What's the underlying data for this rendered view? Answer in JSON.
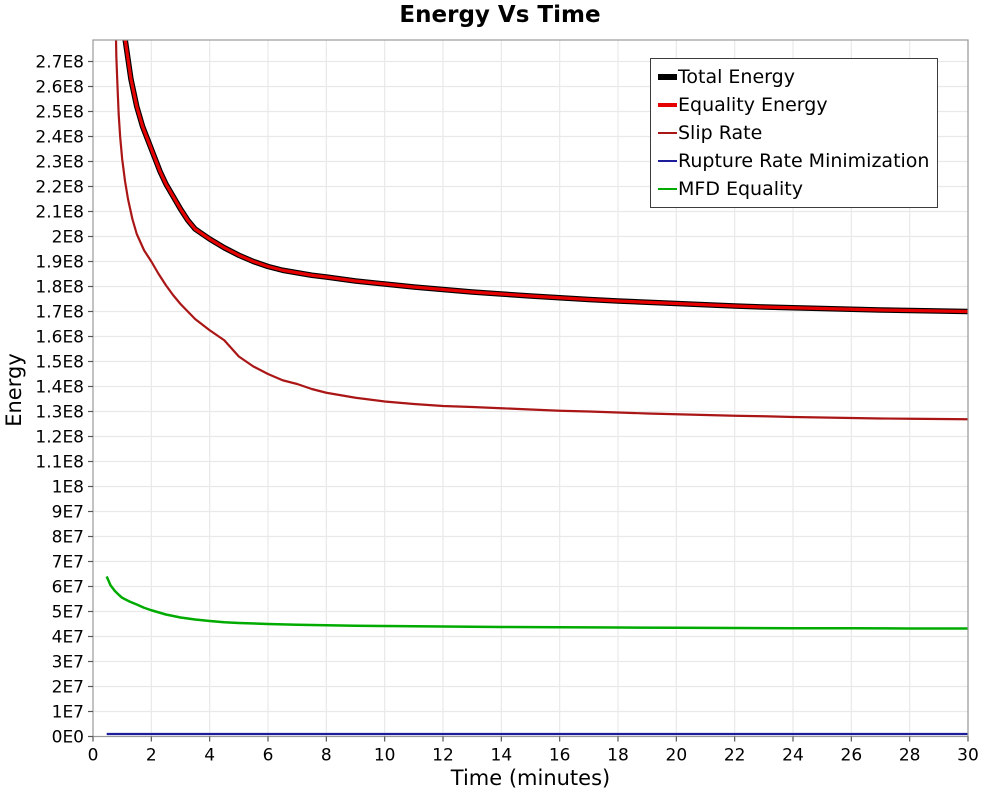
{
  "chart_data": {
    "type": "line",
    "title": "Energy Vs Time",
    "xlabel": "Time (minutes)",
    "ylabel": "Energy",
    "xlim": [
      0,
      30
    ],
    "ylim": [
      0,
      278600000
    ],
    "grid": true,
    "legend_position": "top-right",
    "x_ticks": [
      0,
      2,
      4,
      6,
      8,
      10,
      12,
      14,
      16,
      18,
      20,
      22,
      24,
      26,
      28,
      30
    ],
    "y_tick_step": 10000000,
    "y_tick_labels": [
      "0E0",
      "1E7",
      "2E7",
      "3E7",
      "4E7",
      "5E7",
      "6E7",
      "7E7",
      "8E7",
      "9E7",
      "1E8",
      "1.1E8",
      "1.2E8",
      "1.3E8",
      "1.4E8",
      "1.5E8",
      "1.6E8",
      "1.7E8",
      "1.8E8",
      "1.9E8",
      "2E8",
      "2.1E8",
      "2.2E8",
      "2.3E8",
      "2.4E8",
      "2.5E8",
      "2.6E8",
      "2.7E8"
    ],
    "series": [
      {
        "name": "Total Energy",
        "color": "#000000",
        "line_width": 5.5,
        "points": [
          [
            1.0,
            292000000.0
          ],
          [
            1.1,
            279000000.0
          ],
          [
            1.2,
            271000000.0
          ],
          [
            1.3,
            263000000.0
          ],
          [
            1.5,
            252000000.0
          ],
          [
            1.7,
            244000000.0
          ],
          [
            1.9,
            238000000.0
          ],
          [
            2.1,
            232000000.0
          ],
          [
            2.3,
            226000000.0
          ],
          [
            2.5,
            221000000.0
          ],
          [
            2.75,
            216000000.0
          ],
          [
            3.0,
            211000000.0
          ],
          [
            3.25,
            206500000.0
          ],
          [
            3.5,
            203000000.0
          ],
          [
            3.75,
            201000000.0
          ],
          [
            4.0,
            199000000.0
          ],
          [
            4.5,
            195500000.0
          ],
          [
            5.0,
            192500000.0
          ],
          [
            5.5,
            190000000.0
          ],
          [
            6.0,
            188000000.0
          ],
          [
            6.5,
            186500000.0
          ],
          [
            7.0,
            185500000.0
          ],
          [
            7.5,
            184500000.0
          ],
          [
            8.0,
            183800000.0
          ],
          [
            9.0,
            182200000.0
          ],
          [
            10.0,
            181000000.0
          ],
          [
            11.0,
            179800000.0
          ],
          [
            12.0,
            178800000.0
          ],
          [
            13.0,
            177800000.0
          ],
          [
            14.0,
            177000000.0
          ],
          [
            15.0,
            176200000.0
          ],
          [
            16.0,
            175500000.0
          ],
          [
            17.0,
            174800000.0
          ],
          [
            18.0,
            174200000.0
          ],
          [
            19.0,
            173700000.0
          ],
          [
            20.0,
            173200000.0
          ],
          [
            21.0,
            172700000.0
          ],
          [
            22.0,
            172200000.0
          ],
          [
            23.0,
            171800000.0
          ],
          [
            24.0,
            171500000.0
          ],
          [
            25.0,
            171200000.0
          ],
          [
            26.0,
            170900000.0
          ],
          [
            27.0,
            170600000.0
          ],
          [
            28.0,
            170400000.0
          ],
          [
            29.0,
            170200000.0
          ],
          [
            30.0,
            170000000.0
          ]
        ]
      },
      {
        "name": "Equality Energy",
        "color": "#e60000",
        "line_width": 3.2,
        "points": [
          [
            1.0,
            292000000.0
          ],
          [
            1.1,
            279000000.0
          ],
          [
            1.2,
            271000000.0
          ],
          [
            1.3,
            263000000.0
          ],
          [
            1.5,
            252000000.0
          ],
          [
            1.7,
            244000000.0
          ],
          [
            1.9,
            238000000.0
          ],
          [
            2.1,
            232000000.0
          ],
          [
            2.3,
            226000000.0
          ],
          [
            2.5,
            221000000.0
          ],
          [
            2.75,
            216000000.0
          ],
          [
            3.0,
            211000000.0
          ],
          [
            3.25,
            206500000.0
          ],
          [
            3.5,
            203000000.0
          ],
          [
            3.75,
            201000000.0
          ],
          [
            4.0,
            199000000.0
          ],
          [
            4.5,
            195500000.0
          ],
          [
            5.0,
            192500000.0
          ],
          [
            5.5,
            190000000.0
          ],
          [
            6.0,
            188000000.0
          ],
          [
            6.5,
            186500000.0
          ],
          [
            7.0,
            185500000.0
          ],
          [
            7.5,
            184500000.0
          ],
          [
            8.0,
            183800000.0
          ],
          [
            9.0,
            182200000.0
          ],
          [
            10.0,
            181000000.0
          ],
          [
            11.0,
            179800000.0
          ],
          [
            12.0,
            178800000.0
          ],
          [
            13.0,
            177800000.0
          ],
          [
            14.0,
            177000000.0
          ],
          [
            15.0,
            176200000.0
          ],
          [
            16.0,
            175500000.0
          ],
          [
            17.0,
            174800000.0
          ],
          [
            18.0,
            174200000.0
          ],
          [
            19.0,
            173700000.0
          ],
          [
            20.0,
            173200000.0
          ],
          [
            21.0,
            172700000.0
          ],
          [
            22.0,
            172200000.0
          ],
          [
            23.0,
            171800000.0
          ],
          [
            24.0,
            171500000.0
          ],
          [
            25.0,
            171200000.0
          ],
          [
            26.0,
            170900000.0
          ],
          [
            27.0,
            170600000.0
          ],
          [
            28.0,
            170400000.0
          ],
          [
            29.0,
            170200000.0
          ],
          [
            30.0,
            170000000.0
          ]
        ]
      },
      {
        "name": "Slip Rate",
        "color": "#aa1616",
        "line_width": 2.2,
        "points": [
          [
            0.78,
            285000000.0
          ],
          [
            0.8,
            272000000.0
          ],
          [
            0.84,
            260000000.0
          ],
          [
            0.88,
            249000000.0
          ],
          [
            0.93,
            240000000.0
          ],
          [
            1.0,
            231000000.0
          ],
          [
            1.1,
            222000000.0
          ],
          [
            1.2,
            215000000.0
          ],
          [
            1.35,
            207000000.0
          ],
          [
            1.5,
            201000000.0
          ],
          [
            1.75,
            194500000.0
          ],
          [
            2.0,
            190000000.0
          ],
          [
            2.25,
            185000000.0
          ],
          [
            2.5,
            180500000.0
          ],
          [
            2.75,
            176500000.0
          ],
          [
            3.0,
            173000000.0
          ],
          [
            3.5,
            167000000.0
          ],
          [
            4.0,
            162500000.0
          ],
          [
            4.5,
            158500000.0
          ],
          [
            5.0,
            152000000.0
          ],
          [
            5.5,
            148000000.0
          ],
          [
            6.0,
            145000000.0
          ],
          [
            6.5,
            142500000.0
          ],
          [
            7.0,
            141000000.0
          ],
          [
            7.5,
            139000000.0
          ],
          [
            8.0,
            137500000.0
          ],
          [
            9.0,
            135500000.0
          ],
          [
            10.0,
            134000000.0
          ],
          [
            11.0,
            133000000.0
          ],
          [
            12.0,
            132200000.0
          ],
          [
            13.0,
            131800000.0
          ],
          [
            14.0,
            131300000.0
          ],
          [
            15.0,
            130800000.0
          ],
          [
            16.0,
            130300000.0
          ],
          [
            17.0,
            130000000.0
          ],
          [
            18.0,
            129600000.0
          ],
          [
            19.0,
            129200000.0
          ],
          [
            20.0,
            128900000.0
          ],
          [
            21.0,
            128600000.0
          ],
          [
            22.0,
            128300000.0
          ],
          [
            23.0,
            128100000.0
          ],
          [
            24.0,
            127800000.0
          ],
          [
            25.0,
            127600000.0
          ],
          [
            26.0,
            127400000.0
          ],
          [
            27.0,
            127200000.0
          ],
          [
            28.0,
            127100000.0
          ],
          [
            29.0,
            127000000.0
          ],
          [
            30.0,
            126900000.0
          ]
        ]
      },
      {
        "name": "Rupture Rate Minimization",
        "color": "#1d1d9c",
        "line_width": 2.2,
        "points": [
          [
            0.47,
            1000000.0
          ],
          [
            5.0,
            1000000.0
          ],
          [
            10.0,
            1000000.0
          ],
          [
            15.0,
            1000000.0
          ],
          [
            20.0,
            1000000.0
          ],
          [
            25.0,
            1000000.0
          ],
          [
            30.0,
            1000000.0
          ]
        ]
      },
      {
        "name": "MFD Equality",
        "color": "#00ab00",
        "line_width": 2.5,
        "points": [
          [
            0.47,
            64000000.0
          ],
          [
            0.6,
            60500000.0
          ],
          [
            0.75,
            58200000.0
          ],
          [
            0.9,
            56500000.0
          ],
          [
            1.0,
            55500000.0
          ],
          [
            1.25,
            54000000.0
          ],
          [
            1.5,
            52800000.0
          ],
          [
            1.75,
            51500000.0
          ],
          [
            2.0,
            50500000.0
          ],
          [
            2.5,
            48800000.0
          ],
          [
            3.0,
            47600000.0
          ],
          [
            3.5,
            46800000.0
          ],
          [
            4.0,
            46200000.0
          ],
          [
            4.5,
            45700000.0
          ],
          [
            5.0,
            45400000.0
          ],
          [
            6.0,
            45000000.0
          ],
          [
            7.0,
            44700000.0
          ],
          [
            8.0,
            44500000.0
          ],
          [
            9.0,
            44300000.0
          ],
          [
            10.0,
            44200000.0
          ],
          [
            12.0,
            44000000.0
          ],
          [
            14.0,
            43800000.0
          ],
          [
            16.0,
            43700000.0
          ],
          [
            18.0,
            43600000.0
          ],
          [
            20.0,
            43500000.0
          ],
          [
            22.0,
            43400000.0
          ],
          [
            24.0,
            43300000.0
          ],
          [
            26.0,
            43300000.0
          ],
          [
            28.0,
            43200000.0
          ],
          [
            30.0,
            43200000.0
          ]
        ]
      }
    ],
    "colors": {
      "grid": "#e9e9e9",
      "frame": "#999999",
      "tick": "#555555",
      "text": "#000000",
      "background": "#ffffff"
    }
  }
}
